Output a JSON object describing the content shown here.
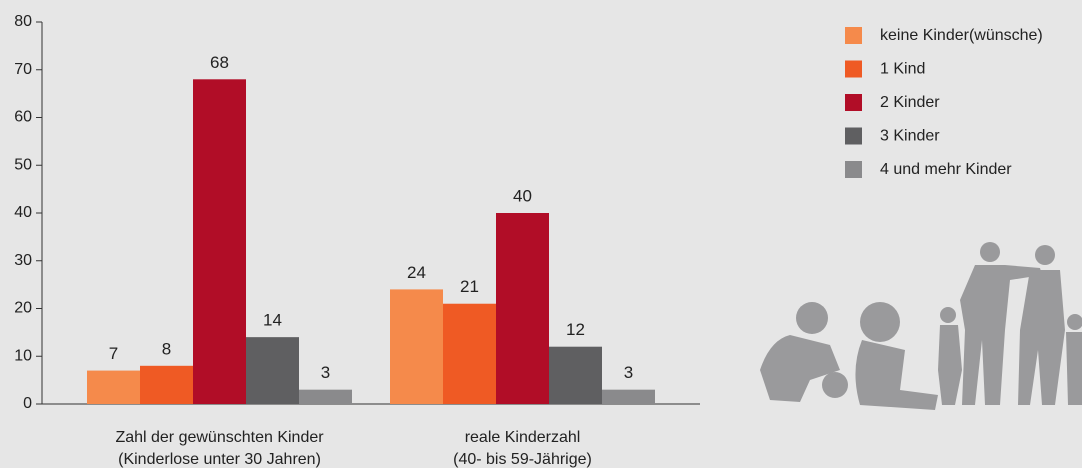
{
  "chart_data": {
    "type": "bar",
    "categories": [
      [
        "Zahl der gewünschten Kinder",
        "(Kinderlose unter 30 Jahren)"
      ],
      [
        "reale Kinderzahl",
        "(40- bis 59-Jährige)"
      ]
    ],
    "series": [
      {
        "name": "keine Kinder(wünsche)",
        "color": "#f58a4b",
        "values": [
          7,
          24
        ]
      },
      {
        "name": "1 Kind",
        "color": "#ef5a24",
        "values": [
          8,
          21
        ]
      },
      {
        "name": "2 Kinder",
        "color": "#b10d27",
        "values": [
          68,
          40
        ]
      },
      {
        "name": "3 Kinder",
        "color": "#5f5f61",
        "values": [
          14,
          12
        ]
      },
      {
        "name": "4 und mehr Kinder",
        "color": "#8a8a8c",
        "values": [
          3,
          3
        ]
      }
    ],
    "ylim": [
      0,
      80
    ],
    "yticks": [
      0,
      10,
      20,
      30,
      40,
      50,
      60,
      70,
      80
    ],
    "legend": "right"
  }
}
